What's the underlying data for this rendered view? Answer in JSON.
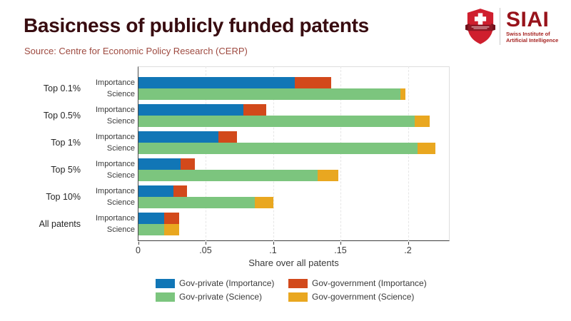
{
  "header": {
    "title": "Basicness of publicly funded patents",
    "source": "Source: Centre for Economic Policy Research (CERP)"
  },
  "logo": {
    "acronym": "SIAI",
    "subtitle_line1": "Swiss Institute of",
    "subtitle_line2": "Artificial Intelligence",
    "shield_color": "#cf1f2e",
    "ribbon_color": "#8c1723",
    "text_color": "#98131b"
  },
  "colors": {
    "blue": "#1176b6",
    "orange": "#d2491b",
    "green": "#7cc57e",
    "yellow": "#e9a720",
    "title": "#380c10",
    "source": "#9e4a40"
  },
  "chart_data": {
    "type": "bar",
    "orientation": "horizontal",
    "stacked": true,
    "title": "",
    "xlabel": "Share over all patents",
    "xlim": [
      0,
      0.231
    ],
    "xticks": [
      0,
      0.05,
      0.1,
      0.15,
      0.2
    ],
    "xtick_labels": [
      "0",
      ".05",
      ".1",
      ".15",
      ".2"
    ],
    "grid": "vertical-dashed",
    "legend_position": "bottom",
    "categories": [
      "Top 0.1%",
      "Top 0.5%",
      "Top 1%",
      "Top 5%",
      "Top 10%",
      "All patents"
    ],
    "bar_labels": [
      "Importance",
      "Science"
    ],
    "series": [
      {
        "name": "Gov-private (Importance)",
        "bar": "Importance",
        "color": "#1176b6",
        "values": [
          0.116,
          0.078,
          0.059,
          0.031,
          0.026,
          0.019
        ]
      },
      {
        "name": "Gov-government (Importance)",
        "bar": "Importance",
        "color": "#d2491b",
        "values": [
          0.027,
          0.017,
          0.014,
          0.011,
          0.01,
          0.011
        ]
      },
      {
        "name": "Gov-private (Science)",
        "bar": "Science",
        "color": "#7cc57e",
        "values": [
          0.194,
          0.205,
          0.207,
          0.133,
          0.086,
          0.019
        ]
      },
      {
        "name": "Gov-government (Science)",
        "bar": "Science",
        "color": "#e9a720",
        "values": [
          0.004,
          0.011,
          0.013,
          0.015,
          0.014,
          0.011
        ]
      }
    ]
  },
  "legend": {
    "items": [
      {
        "label": "Gov-private (Importance)",
        "color": "#1176b6"
      },
      {
        "label": "Gov-government (Importance)",
        "color": "#d2491b"
      },
      {
        "label": "Gov-private (Science)",
        "color": "#7cc57e"
      },
      {
        "label": "Gov-government (Science)",
        "color": "#e9a720"
      }
    ]
  }
}
